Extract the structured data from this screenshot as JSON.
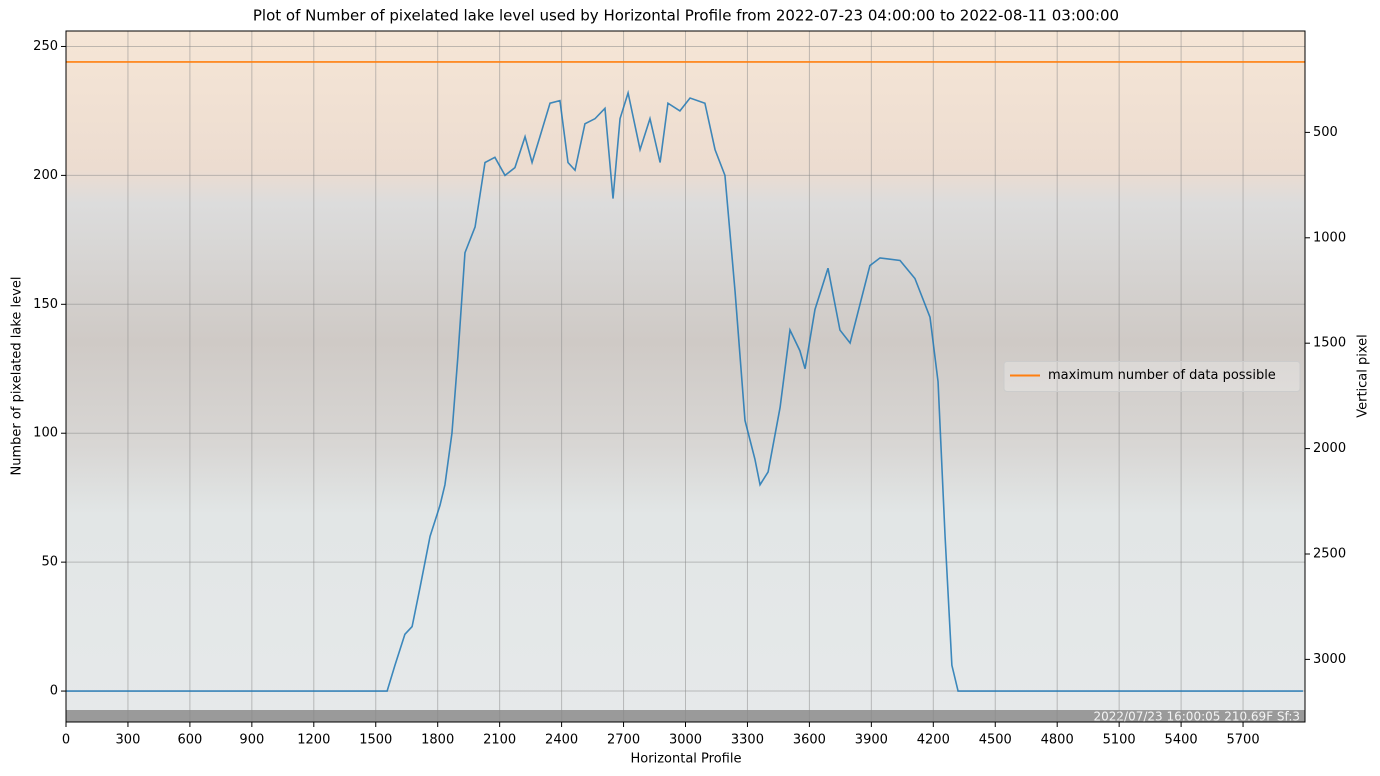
{
  "chart_data": {
    "type": "line",
    "title": "Plot of Number of pixelated lake level used by Horizontal Profile from 2022-07-23 04:00:00 to 2022-08-11 03:00:00",
    "x_label": "Horizontal Profile",
    "y_label": "Number of pixelated lake level",
    "y2_label": "Vertical pixel",
    "overlay_text": "2022/07/23 16:00:05   210.69F Sf:3",
    "x": [
      0,
      1555,
      1593,
      1641,
      1676,
      1714,
      1763,
      1811,
      1835,
      1869,
      1898,
      1932,
      1981,
      2029,
      2077,
      2126,
      2174,
      2223,
      2257,
      2295,
      2344,
      2392,
      2431,
      2465,
      2513,
      2562,
      2610,
      2649,
      2683,
      2722,
      2780,
      2828,
      2877,
      2915,
      2973,
      3022,
      3094,
      3143,
      3191,
      3240,
      3288,
      3336,
      3361,
      3400,
      3458,
      3506,
      3554,
      3579,
      3627,
      3690,
      3748,
      3797,
      3845,
      3893,
      3942,
      4039,
      4111,
      4184,
      4223,
      4257,
      4290,
      4320,
      5990
    ],
    "series": [
      {
        "color": "#1f77b4",
        "values": [
          0,
          0,
          10,
          22,
          25,
          40,
          60,
          72,
          80,
          100,
          130,
          170,
          180,
          205,
          207,
          200,
          203,
          215,
          205,
          215,
          228,
          229,
          205,
          202,
          220,
          222,
          226,
          191,
          222,
          232,
          210,
          222,
          205,
          228,
          225,
          230,
          228,
          210,
          200,
          155,
          105,
          90,
          80,
          85,
          110,
          140,
          132,
          125,
          148,
          164,
          140,
          135,
          150,
          165,
          168,
          167,
          160,
          145,
          120,
          60,
          10,
          0,
          0
        ]
      }
    ],
    "hlines": [
      {
        "name": "maximum number of data possible",
        "color": "#ff7f0e",
        "value": 244
      }
    ],
    "xlim": [
      0,
      6000
    ],
    "xticks": [
      0,
      300,
      600,
      900,
      1200,
      1500,
      1800,
      2100,
      2400,
      2700,
      3000,
      3300,
      3600,
      3900,
      4200,
      4500,
      4800,
      5100,
      5400,
      5700
    ],
    "ylim": [
      -12,
      256
    ],
    "yticks": [
      0,
      50,
      100,
      150,
      200,
      250
    ],
    "y2lim": [
      3297,
      19
    ],
    "y2ticks": [
      500,
      1000,
      1500,
      2000,
      2500,
      3000
    ],
    "grid": true,
    "legend": "center right"
  }
}
